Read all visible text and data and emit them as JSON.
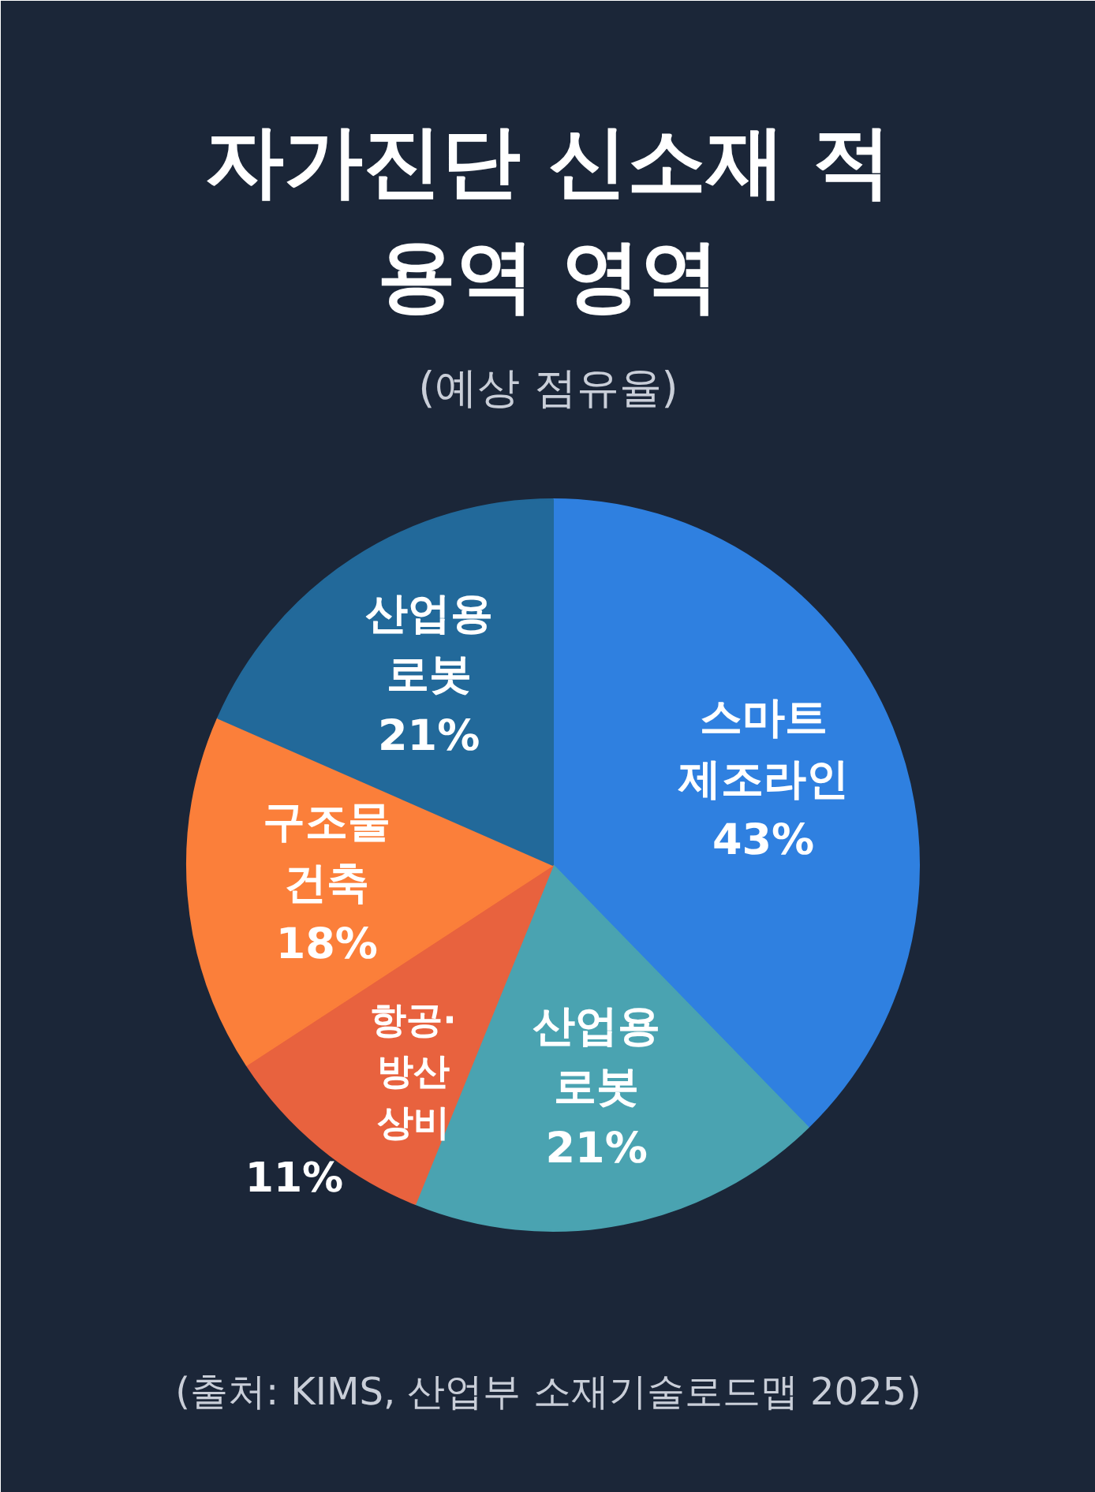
{
  "chart_data": {
    "type": "pie",
    "title": "자가진단 신소재 적\n용역 영역",
    "subtitle": "(예상 점유율)",
    "categories": [
      "스마트\n제조라인",
      "산업용\n로봇",
      "항공·\n방산\n상비",
      "구조물\n건축",
      "산업용\n로봇"
    ],
    "values": [
      43,
      21,
      11,
      18,
      21
    ],
    "value_labels": [
      "43%",
      "21%",
      "11%",
      "18%",
      "21%"
    ],
    "colors": [
      "#2f80e0",
      "#4aa3b1",
      "#e8623e",
      "#fb7f3a",
      "#22699a"
    ],
    "annotations": [
      "(출처: KIMS, 산업부 소재기술로드맵 2025)"
    ],
    "legend": false
  }
}
